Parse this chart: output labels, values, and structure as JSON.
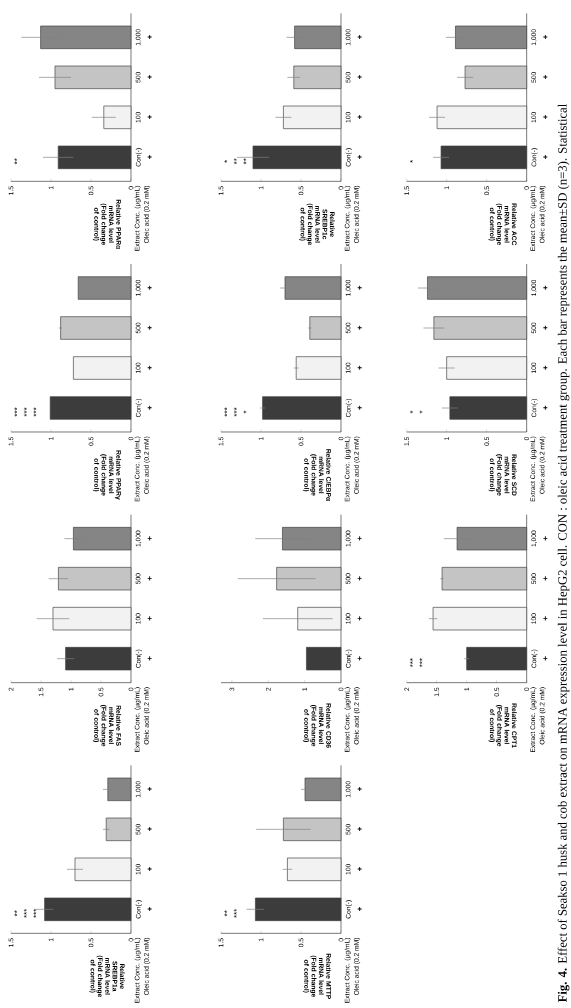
{
  "chart_data": [
    {
      "type": "bar",
      "orientation": "horizontal",
      "ylabel": "Relative PPARα mRNA level (Fold change of control)",
      "categories": [
        "1,000",
        "500",
        "100",
        "Con(-)"
      ],
      "colors": [
        "#858585",
        "#c4c4c4",
        "#f2f2f2",
        "#3c3c3c"
      ],
      "values": [
        1.13,
        0.95,
        0.34,
        0.91
      ],
      "errors": [
        0.24,
        0.2,
        0.15,
        0.19
      ],
      "xlim": [
        1.5,
        0
      ],
      "xticks": [
        0,
        0.5,
        1,
        1.5
      ],
      "annotations": [
        "Extract Conc. (µg/mL)",
        "Oleic acid (0.2 mM)",
        "+",
        "+",
        "+",
        "+",
        "**"
      ]
    },
    {
      "type": "bar",
      "orientation": "horizontal",
      "ylabel": "Relative PPARγ mRNA level (Fold change of control)",
      "categories": [
        "1,000",
        "500",
        "100",
        "Con(-)"
      ],
      "colors": [
        "#858585",
        "#c4c4c4",
        "#f2f2f2",
        "#3c3c3c"
      ],
      "values": [
        0.66,
        0.88,
        0.72,
        1.01
      ],
      "errors": [
        null,
        0.02,
        null,
        null
      ],
      "xlim": [
        1.5,
        0
      ],
      "xticks": [
        0,
        0.5,
        1,
        1.5
      ],
      "annotations": [
        "Extract Conc. (µg/mL)",
        "Oleic acid (0.2 mM)",
        "+",
        "+",
        "+",
        "+",
        "***",
        "***",
        "***"
      ]
    },
    {
      "type": "bar",
      "orientation": "horizontal",
      "ylabel": "Relative FAS mRNA level (Fold change of control)",
      "categories": [
        "1,000",
        "500",
        "100",
        "Con(-)"
      ],
      "colors": [
        "#858585",
        "#c4c4c4",
        "#f2f2f2",
        "#3c3c3c"
      ],
      "values": [
        0.96,
        1.21,
        1.3,
        1.09
      ],
      "errors": [
        0.15,
        0.16,
        0.27,
        0.14
      ],
      "xlim": [
        2,
        0
      ],
      "xticks": [
        0,
        0.5,
        1,
        1.5,
        2
      ],
      "annotations": [
        "Extract Conc. (µg/mL)",
        "Oleic acid (0.2 mM)",
        "+",
        "+",
        "+",
        "+"
      ]
    },
    {
      "type": "bar",
      "orientation": "horizontal",
      "ylabel": "Relative SREBP1a mRNA level (Fold change of control)",
      "categories": [
        "1,000",
        "500",
        "100",
        "Con(-)"
      ],
      "colors": [
        "#858585",
        "#c4c4c4",
        "#f2f2f2",
        "#3c3c3c"
      ],
      "values": [
        0.29,
        0.31,
        0.7,
        1.08
      ],
      "errors": [
        0.06,
        0.04,
        0.1,
        0.11
      ],
      "xlim": [
        1.5,
        0
      ],
      "xticks": [
        0,
        0.5,
        1,
        1.5
      ],
      "annotations": [
        "Extract Conc. (µg/mL)",
        "Oleic acid (0.2 mM)",
        "+",
        "+",
        "+",
        "+",
        "**",
        "***",
        "***"
      ]
    },
    {
      "type": "bar",
      "orientation": "horizontal",
      "ylabel": "Relative SREBP1c mRNA level (Fold change of control)",
      "categories": [
        "1,000",
        "500",
        "100",
        "Con(-)"
      ],
      "colors": [
        "#858585",
        "#c4c4c4",
        "#f2f2f2",
        "#3c3c3c"
      ],
      "values": [
        0.58,
        0.59,
        0.72,
        1.1
      ],
      "errors": [
        0.1,
        0.08,
        0.1,
        0.2
      ],
      "xlim": [
        1.5,
        0
      ],
      "xticks": [
        0,
        0.5,
        1,
        1.5
      ],
      "annotations": [
        "Extract Conc. (µg/mL)",
        "Oleic acid (0.2 mM)",
        "+",
        "+",
        "+",
        "+",
        "*",
        "**",
        "**"
      ]
    },
    {
      "type": "bar",
      "orientation": "horizontal",
      "ylabel": "Relative C/EBPα mRNA level (Fold change of control)",
      "categories": [
        "1,000",
        "500",
        "100",
        "Con(-)"
      ],
      "colors": [
        "#858585",
        "#c4c4c4",
        "#f2f2f2",
        "#3c3c3c"
      ],
      "values": [
        0.7,
        0.39,
        0.56,
        0.98
      ],
      "errors": [
        0.06,
        0.02,
        0.03,
        0.03
      ],
      "xlim": [
        1.5,
        0
      ],
      "xticks": [
        0,
        0.5,
        1,
        1.5
      ],
      "annotations": [
        "Extract Conc. (µg/mL)",
        "Oleic acid (0.2 mM)",
        "+",
        "+",
        "+",
        "+",
        "***",
        "***",
        "*"
      ]
    },
    {
      "type": "bar",
      "orientation": "horizontal",
      "ylabel": "Relative CD36 mRNA level (Fold change of control)",
      "categories": [
        "1,000",
        "500",
        "100",
        "Con(-)"
      ],
      "colors": [
        "#858585",
        "#c4c4c4",
        "#f2f2f2",
        "#3c3c3c"
      ],
      "values": [
        1.61,
        1.77,
        1.19,
        0.95
      ],
      "errors": [
        0.75,
        1.07,
        0.96,
        null
      ],
      "xlim": [
        3.3,
        0
      ],
      "xticks": [
        0,
        1,
        2,
        3
      ],
      "annotations": [
        "Extract Conc. (µg/mL)",
        "Oleic acid (0.2 mM)",
        "+",
        "+",
        "+",
        "+"
      ]
    },
    {
      "type": "bar",
      "orientation": "horizontal",
      "ylabel": "Relative MTTP mRNA level (Fold change of control)",
      "categories": [
        "1,000",
        "500",
        "100",
        "Con(-)"
      ],
      "colors": [
        "#858585",
        "#c4c4c4",
        "#f2f2f2",
        "#3c3c3c"
      ],
      "values": [
        0.45,
        0.72,
        0.67,
        1.07
      ],
      "errors": [
        0.05,
        0.34,
        0.06,
        0.11
      ],
      "xlim": [
        1.5,
        0
      ],
      "xticks": [
        0,
        0.5,
        1,
        1.5
      ],
      "annotations": [
        "Extract Conc. (µg/mL)",
        "Oleic acid (0.2 mM)",
        "+",
        "+",
        "+",
        "+",
        "**",
        "***"
      ]
    },
    {
      "type": "bar",
      "orientation": "horizontal",
      "ylabel": "Relative ACC mRNA level (Fold change of control)",
      "categories": [
        "1,000",
        "500",
        "100",
        "Con(-)"
      ],
      "colors": [
        "#858585",
        "#c4c4c4",
        "#f2f2f2",
        "#3c3c3c"
      ],
      "values": [
        0.89,
        0.77,
        1.12,
        1.07
      ],
      "errors": [
        0.12,
        0.1,
        0.1,
        0.1
      ],
      "xlim": [
        1.5,
        0
      ],
      "xticks": [
        0,
        0.5,
        1,
        1.5
      ],
      "annotations": [
        "Extract Conc. (µg/mL)",
        "Oleic acid (0.2 mM)",
        "+",
        "+",
        "+",
        "+",
        "*"
      ]
    },
    {
      "type": "bar",
      "orientation": "horizontal",
      "ylabel": "Relative SCD mRNA level (Fold change of control)",
      "categories": [
        "1,000",
        "500",
        "100",
        "Con(-)"
      ],
      "colors": [
        "#858585",
        "#c4c4c4",
        "#f2f2f2",
        "#3c3c3c"
      ],
      "values": [
        1.24,
        1.16,
        1.0,
        0.96
      ],
      "errors": [
        0.12,
        0.13,
        0.1,
        0.1
      ],
      "xlim": [
        1.5,
        0
      ],
      "xticks": [
        0,
        0.5,
        1,
        1.5
      ],
      "annotations": [
        "Extract Conc. (µg/mL)",
        "Oleic acid (0.2 mM)",
        "+",
        "+",
        "+",
        "+",
        "*",
        "*"
      ]
    },
    {
      "type": "bar",
      "orientation": "horizontal",
      "ylabel": "Relative CPT1 mRNA level (Fold change of control)",
      "categories": [
        "1,000",
        "500",
        "100",
        "Con(-)"
      ],
      "colors": [
        "#858585",
        "#c4c4c4",
        "#f2f2f2",
        "#3c3c3c"
      ],
      "values": [
        1.16,
        1.41,
        1.56,
        1.0
      ],
      "errors": [
        0.22,
        0.03,
        0.07,
        0.04
      ],
      "xlim": [
        2,
        0
      ],
      "xticks": [
        0,
        0.5,
        1,
        1.5,
        2
      ],
      "annotations": [
        "Extract Conc. (µg/mL)",
        "Oleic acid (0.2 mM)",
        "+",
        "+",
        "+",
        "+",
        "***",
        "***"
      ]
    },
    {
      "type": "other",
      "annotations": [
        "**Fig. 4.** Effect of Seakso 1 husk and cob extract on mRNA expression level in HepG2 cell. CON : oleic acid treatment group. Each bar represents the mean±SD (n=3). Statistical"
      ]
    }
  ]
}
